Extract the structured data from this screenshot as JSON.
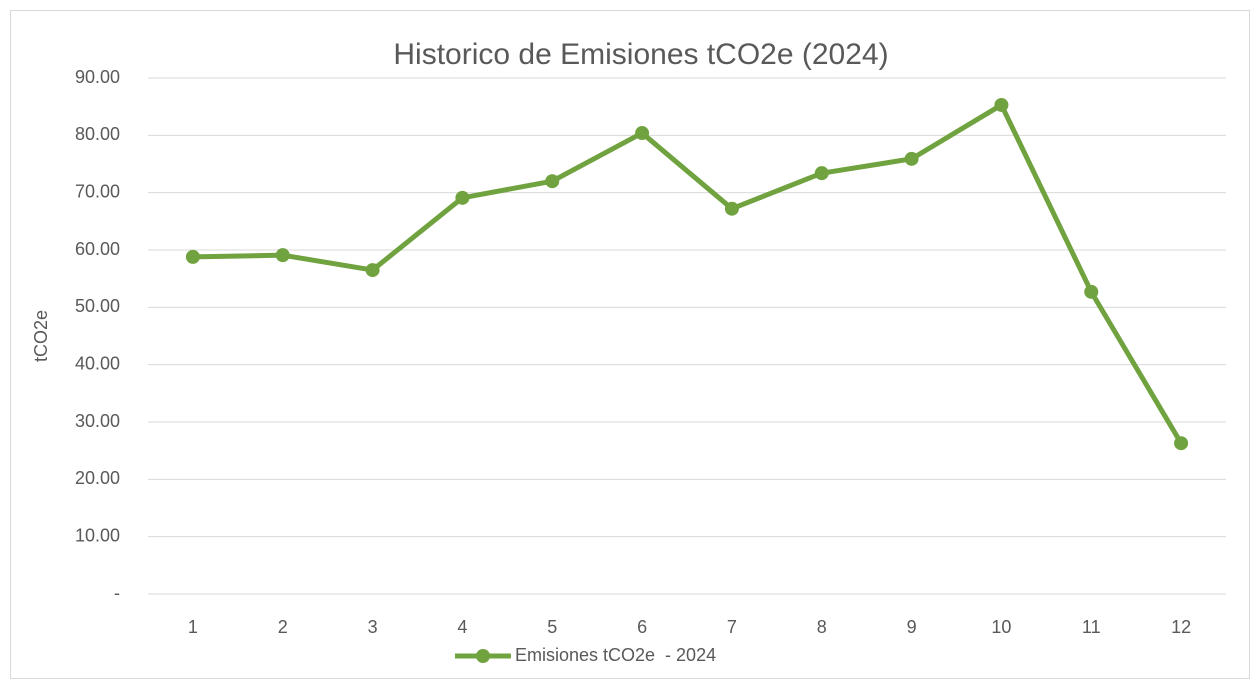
{
  "chart_data": {
    "type": "line",
    "title": "Historico de Emisiones tCO2e (2024)",
    "y_label": "tCO2e",
    "categories": [
      "1",
      "2",
      "3",
      "4",
      "5",
      "6",
      "7",
      "8",
      "9",
      "10",
      "11",
      "12"
    ],
    "series": [
      {
        "name": "Emisiones tCO2e  - 2024",
        "color": "#70a33f",
        "values": [
          58.8,
          59.1,
          56.5,
          69.1,
          72.0,
          80.4,
          67.2,
          73.4,
          75.9,
          85.3,
          52.7,
          26.3
        ]
      }
    ],
    "ylim": [
      0,
      90
    ],
    "yticks": [
      {
        "value": 0,
        "label": "-"
      },
      {
        "value": 10,
        "label": "10.00"
      },
      {
        "value": 20,
        "label": "20.00"
      },
      {
        "value": 30,
        "label": "30.00"
      },
      {
        "value": 40,
        "label": "40.00"
      },
      {
        "value": 50,
        "label": "50.00"
      },
      {
        "value": 60,
        "label": "60.00"
      },
      {
        "value": 70,
        "label": "70.00"
      },
      {
        "value": 80,
        "label": "80.00"
      },
      {
        "value": 90,
        "label": "90.00"
      }
    ],
    "grid": true,
    "legend": "bottom"
  }
}
